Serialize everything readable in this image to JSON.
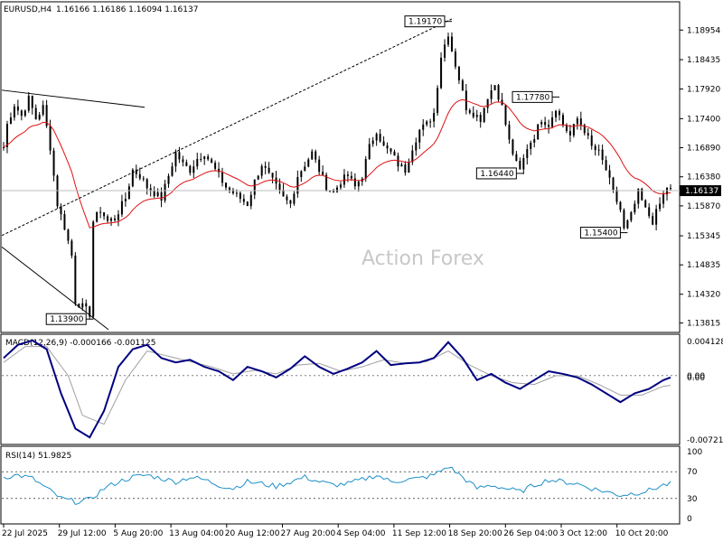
{
  "header": {
    "symbol": "EURUSD,H4",
    "ohlc": "1.16166 1.16186 1.16094 1.16137"
  },
  "watermark": "Action Forex",
  "colors": {
    "candle": "#000000",
    "ma": "#e01010",
    "macd_main": "#000080",
    "macd_signal": "#a0a0a0",
    "rsi": "#1e90c8",
    "grid_dotted": "#000000",
    "bid_line": "#bdbdbd"
  },
  "chart_data": [
    {
      "type": "candlestick",
      "panel": "price",
      "ylim": [
        1.1365,
        1.1945
      ],
      "yticks": [
        "1.18954",
        "1.18435",
        "1.17920",
        "1.17400",
        "1.16890",
        "1.16380",
        "1.15870",
        "1.15345",
        "1.14835",
        "1.14320",
        "1.13815"
      ],
      "ytick_values": [
        1.18954,
        1.18435,
        1.1792,
        1.174,
        1.1689,
        1.1638,
        1.1587,
        1.15345,
        1.14835,
        1.1432,
        1.13815
      ],
      "current_price_label": "1.16137",
      "current_price": 1.16137,
      "xticks": [
        "22 Jul 2025",
        "29 Jul 12:00",
        "5 Aug 20:00",
        "13 Aug 04:00",
        "20 Aug 12:00",
        "27 Aug 20:00",
        "4 Sep 04:00",
        "11 Sep 12:00",
        "18 Sep 20:00",
        "26 Sep 04:00",
        "3 Oct 12:00",
        "10 Oct 20:00"
      ],
      "pivot_labels": [
        {
          "text": "1.19170",
          "value": 1.1917,
          "x_index": 124
        },
        {
          "text": "1.17780",
          "value": 1.1778,
          "x_index": 154
        },
        {
          "text": "1.16440",
          "value": 1.1644,
          "x_index": 144
        },
        {
          "text": "1.15400",
          "value": 1.154,
          "x_index": 173
        },
        {
          "text": "1.13900",
          "value": 1.139,
          "x_index": 24
        }
      ],
      "path_points": [
        [
          0,
          1.169
        ],
        [
          1,
          1.173
        ],
        [
          3,
          1.1765
        ],
        [
          5,
          1.1745
        ],
        [
          7,
          1.1775
        ],
        [
          9,
          1.174
        ],
        [
          11,
          1.176
        ],
        [
          13,
          1.169
        ],
        [
          15,
          1.159
        ],
        [
          17,
          1.155
        ],
        [
          19,
          1.15
        ],
        [
          20,
          1.142
        ],
        [
          22,
          1.141
        ],
        [
          24,
          1.1398
        ],
        [
          25,
          1.156
        ],
        [
          27,
          1.158
        ],
        [
          29,
          1.156
        ],
        [
          31,
          1.1565
        ],
        [
          34,
          1.16
        ],
        [
          36,
          1.165
        ],
        [
          38,
          1.164
        ],
        [
          40,
          1.162
        ],
        [
          42,
          1.161
        ],
        [
          44,
          1.16
        ],
        [
          46,
          1.164
        ],
        [
          48,
          1.168
        ],
        [
          50,
          1.166
        ],
        [
          52,
          1.165
        ],
        [
          54,
          1.167
        ],
        [
          56,
          1.168
        ],
        [
          58,
          1.166
        ],
        [
          60,
          1.164
        ],
        [
          62,
          1.162
        ],
        [
          64,
          1.161
        ],
        [
          66,
          1.16
        ],
        [
          68,
          1.159
        ],
        [
          70,
          1.163
        ],
        [
          72,
          1.166
        ],
        [
          74,
          1.164
        ],
        [
          76,
          1.162
        ],
        [
          78,
          1.16
        ],
        [
          80,
          1.159
        ],
        [
          82,
          1.164
        ],
        [
          84,
          1.166
        ],
        [
          86,
          1.168
        ],
        [
          88,
          1.165
        ],
        [
          90,
          1.162
        ],
        [
          92,
          1.161
        ],
        [
          94,
          1.163
        ],
        [
          96,
          1.164
        ],
        [
          98,
          1.162
        ],
        [
          100,
          1.164
        ],
        [
          102,
          1.169
        ],
        [
          104,
          1.172
        ],
        [
          106,
          1.169
        ],
        [
          108,
          1.168
        ],
        [
          110,
          1.166
        ],
        [
          112,
          1.165
        ],
        [
          114,
          1.169
        ],
        [
          116,
          1.172
        ],
        [
          118,
          1.173
        ],
        [
          120,
          1.175
        ],
        [
          122,
          1.185
        ],
        [
          124,
          1.189
        ],
        [
          125,
          1.186
        ],
        [
          127,
          1.181
        ],
        [
          129,
          1.176
        ],
        [
          131,
          1.175
        ],
        [
          133,
          1.174
        ],
        [
          135,
          1.178
        ],
        [
          137,
          1.18
        ],
        [
          139,
          1.176
        ],
        [
          141,
          1.17
        ],
        [
          143,
          1.166
        ],
        [
          144,
          1.1648
        ],
        [
          146,
          1.169
        ],
        [
          148,
          1.171
        ],
        [
          150,
          1.174
        ],
        [
          152,
          1.173
        ],
        [
          154,
          1.176
        ],
        [
          156,
          1.173
        ],
        [
          158,
          1.171
        ],
        [
          160,
          1.174
        ],
        [
          162,
          1.172
        ],
        [
          164,
          1.169
        ],
        [
          166,
          1.168
        ],
        [
          168,
          1.165
        ],
        [
          170,
          1.161
        ],
        [
          172,
          1.158
        ],
        [
          173,
          1.1545
        ],
        [
          175,
          1.157
        ],
        [
          177,
          1.161
        ],
        [
          179,
          1.158
        ],
        [
          181,
          1.156
        ],
        [
          183,
          1.159
        ],
        [
          185,
          1.162
        ],
        [
          186,
          1.1614
        ]
      ],
      "n_bars": 187
    },
    {
      "type": "line",
      "panel": "macd",
      "indicator": "MACD(12,26,9) -0.000166 -0.001125",
      "yticks": [
        "0.004128",
        "0.00",
        "0.00",
        "-0.007216"
      ],
      "ylim": [
        -0.0078,
        0.0047
      ],
      "main_points": [
        [
          0,
          0.002
        ],
        [
          4,
          0.0035
        ],
        [
          8,
          0.004
        ],
        [
          12,
          0.003
        ],
        [
          16,
          -0.002
        ],
        [
          20,
          -0.006
        ],
        [
          24,
          -0.007
        ],
        [
          28,
          -0.004
        ],
        [
          32,
          0.001
        ],
        [
          36,
          0.003
        ],
        [
          40,
          0.0035
        ],
        [
          44,
          0.002
        ],
        [
          48,
          0.0015
        ],
        [
          52,
          0.0018
        ],
        [
          56,
          0.001
        ],
        [
          60,
          0.0005
        ],
        [
          64,
          -0.0005
        ],
        [
          68,
          0.001
        ],
        [
          72,
          0.0005
        ],
        [
          76,
          -0.0002
        ],
        [
          80,
          0.0008
        ],
        [
          84,
          0.0022
        ],
        [
          88,
          0.001
        ],
        [
          92,
          0.0002
        ],
        [
          96,
          0.0008
        ],
        [
          100,
          0.0015
        ],
        [
          104,
          0.0028
        ],
        [
          108,
          0.0012
        ],
        [
          112,
          0.0014
        ],
        [
          116,
          0.0015
        ],
        [
          120,
          0.002
        ],
        [
          124,
          0.0038
        ],
        [
          128,
          0.002
        ],
        [
          132,
          -0.0005
        ],
        [
          136,
          0.0002
        ],
        [
          140,
          -0.0008
        ],
        [
          144,
          -0.0015
        ],
        [
          148,
          -0.0005
        ],
        [
          152,
          0.0005
        ],
        [
          156,
          0.0002
        ],
        [
          160,
          -0.0002
        ],
        [
          164,
          -0.001
        ],
        [
          168,
          -0.002
        ],
        [
          172,
          -0.003
        ],
        [
          176,
          -0.002
        ],
        [
          180,
          -0.0015
        ],
        [
          184,
          -0.0005
        ],
        [
          186,
          -0.0002
        ]
      ],
      "signal_points": [
        [
          0,
          0.0015
        ],
        [
          6,
          0.0033
        ],
        [
          12,
          0.0033
        ],
        [
          18,
          0.0
        ],
        [
          22,
          -0.0045
        ],
        [
          28,
          -0.0055
        ],
        [
          34,
          -0.0005
        ],
        [
          40,
          0.0028
        ],
        [
          46,
          0.0022
        ],
        [
          52,
          0.0016
        ],
        [
          58,
          0.001
        ],
        [
          64,
          0.0002
        ],
        [
          70,
          0.0006
        ],
        [
          76,
          0.0002
        ],
        [
          82,
          0.0012
        ],
        [
          88,
          0.0014
        ],
        [
          94,
          0.0005
        ],
        [
          100,
          0.001
        ],
        [
          106,
          0.0018
        ],
        [
          112,
          0.0014
        ],
        [
          118,
          0.0016
        ],
        [
          124,
          0.0028
        ],
        [
          130,
          0.0012
        ],
        [
          136,
          0.0
        ],
        [
          142,
          -0.0008
        ],
        [
          148,
          -0.001
        ],
        [
          154,
          0.0
        ],
        [
          160,
          0.0
        ],
        [
          166,
          -0.001
        ],
        [
          172,
          -0.0022
        ],
        [
          178,
          -0.0022
        ],
        [
          184,
          -0.0012
        ],
        [
          186,
          -0.0011
        ]
      ]
    },
    {
      "type": "line",
      "panel": "rsi",
      "indicator": "RSI(14) 51.9825",
      "yticks": [
        "100",
        "70",
        "30",
        "0"
      ],
      "ylim": [
        0,
        100
      ],
      "levels": [
        70,
        30
      ],
      "points": [
        [
          0,
          62
        ],
        [
          4,
          65
        ],
        [
          8,
          60
        ],
        [
          12,
          45
        ],
        [
          16,
          30
        ],
        [
          20,
          25
        ],
        [
          24,
          28
        ],
        [
          28,
          45
        ],
        [
          32,
          55
        ],
        [
          36,
          62
        ],
        [
          40,
          65
        ],
        [
          44,
          60
        ],
        [
          48,
          55
        ],
        [
          52,
          62
        ],
        [
          56,
          58
        ],
        [
          60,
          50
        ],
        [
          64,
          45
        ],
        [
          68,
          55
        ],
        [
          72,
          52
        ],
        [
          76,
          48
        ],
        [
          80,
          55
        ],
        [
          84,
          62
        ],
        [
          88,
          55
        ],
        [
          92,
          50
        ],
        [
          96,
          52
        ],
        [
          100,
          58
        ],
        [
          104,
          65
        ],
        [
          108,
          55
        ],
        [
          112,
          58
        ],
        [
          116,
          60
        ],
        [
          120,
          65
        ],
        [
          124,
          78
        ],
        [
          128,
          62
        ],
        [
          132,
          45
        ],
        [
          136,
          50
        ],
        [
          140,
          45
        ],
        [
          144,
          40
        ],
        [
          148,
          50
        ],
        [
          152,
          58
        ],
        [
          156,
          55
        ],
        [
          160,
          52
        ],
        [
          164,
          45
        ],
        [
          168,
          40
        ],
        [
          172,
          35
        ],
        [
          176,
          38
        ],
        [
          180,
          42
        ],
        [
          184,
          50
        ],
        [
          186,
          52
        ]
      ]
    }
  ]
}
